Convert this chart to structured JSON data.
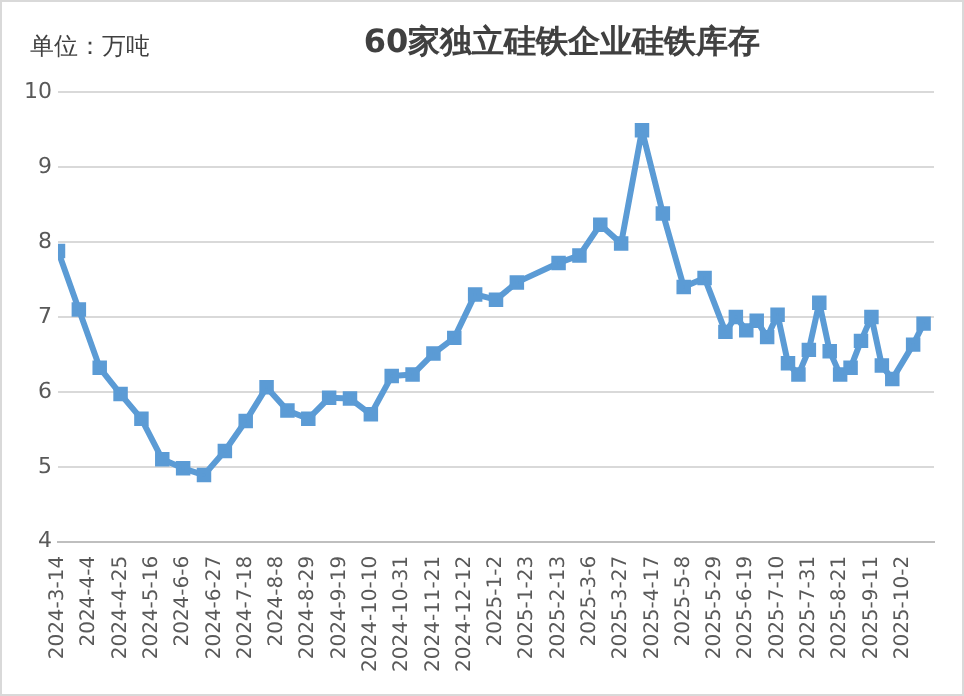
{
  "chart_data": {
    "type": "line",
    "title": "60家独立硅铁企业硅铁库存",
    "annotations": [
      "单位：万吨"
    ],
    "x": [
      "2024-03-14",
      "2024-03-28",
      "2024-04-11",
      "2024-04-25",
      "2024-05-09",
      "2024-05-23",
      "2024-06-06",
      "2024-06-20",
      "2024-07-04",
      "2024-07-18",
      "2024-08-01",
      "2024-08-15",
      "2024-08-29",
      "2024-09-12",
      "2024-09-26",
      "2024-10-10",
      "2024-10-24",
      "2024-11-07",
      "2024-11-21",
      "2024-12-05",
      "2024-12-19",
      "2025-01-02",
      "2025-01-16",
      "2025-02-13",
      "2025-02-27",
      "2025-03-13",
      "2025-03-27",
      "2025-04-10",
      "2025-04-24",
      "2025-05-08",
      "2025-05-22",
      "2025-06-05",
      "2025-06-12",
      "2025-06-19",
      "2025-06-26",
      "2025-07-03",
      "2025-07-10",
      "2025-07-17",
      "2025-07-24",
      "2025-07-31",
      "2025-08-07",
      "2025-08-14",
      "2025-08-21",
      "2025-08-28",
      "2025-09-04",
      "2025-09-11",
      "2025-09-18",
      "2025-09-25",
      "2025-10-09",
      "2025-10-16"
    ],
    "series": [
      {
        "color": "#5b9bd5",
        "values": [
          7.88,
          7.1,
          6.32,
          5.97,
          5.64,
          5.1,
          4.98,
          4.89,
          5.21,
          5.61,
          6.06,
          5.75,
          5.64,
          5.92,
          5.91,
          5.7,
          6.21,
          6.23,
          6.51,
          6.72,
          7.3,
          7.23,
          7.46,
          7.72,
          7.82,
          8.23,
          7.98,
          9.49,
          8.38,
          7.4,
          7.52,
          6.8,
          7.0,
          6.82,
          6.95,
          6.73,
          7.03,
          6.38,
          6.23,
          6.56,
          7.19,
          6.54,
          6.23,
          6.32,
          6.68,
          7.0,
          6.35,
          6.17,
          6.63,
          6.91
        ]
      }
    ],
    "xlim": [
      "2024-03-14",
      "2025-10-23"
    ],
    "xticks": [
      {
        "value": "2024-03-14",
        "label": "2024-3-14"
      },
      {
        "value": "2024-04-04",
        "label": "2024-4-4"
      },
      {
        "value": "2024-04-25",
        "label": "2024-4-25"
      },
      {
        "value": "2024-05-16",
        "label": "2024-5-16"
      },
      {
        "value": "2024-06-06",
        "label": "2024-6-6"
      },
      {
        "value": "2024-06-27",
        "label": "2024-6-27"
      },
      {
        "value": "2024-07-18",
        "label": "2024-7-18"
      },
      {
        "value": "2024-08-08",
        "label": "2024-8-8"
      },
      {
        "value": "2024-08-29",
        "label": "2024-8-29"
      },
      {
        "value": "2024-09-19",
        "label": "2024-9-19"
      },
      {
        "value": "2024-10-10",
        "label": "2024-10-10"
      },
      {
        "value": "2024-10-31",
        "label": "2024-10-31"
      },
      {
        "value": "2024-11-21",
        "label": "2024-11-21"
      },
      {
        "value": "2024-12-12",
        "label": "2024-12-12"
      },
      {
        "value": "2025-01-02",
        "label": "2025-1-2"
      },
      {
        "value": "2025-01-23",
        "label": "2025-1-23"
      },
      {
        "value": "2025-02-13",
        "label": "2025-2-13"
      },
      {
        "value": "2025-03-06",
        "label": "2025-3-6"
      },
      {
        "value": "2025-03-27",
        "label": "2025-3-27"
      },
      {
        "value": "2025-04-17",
        "label": "2025-4-17"
      },
      {
        "value": "2025-05-08",
        "label": "2025-5-8"
      },
      {
        "value": "2025-05-29",
        "label": "2025-5-29"
      },
      {
        "value": "2025-06-19",
        "label": "2025-6-19"
      },
      {
        "value": "2025-07-10",
        "label": "2025-7-10"
      },
      {
        "value": "2025-07-31",
        "label": "2025-7-31"
      },
      {
        "value": "2025-08-21",
        "label": "2025-8-21"
      },
      {
        "value": "2025-09-11",
        "label": "2025-9-11"
      },
      {
        "value": "2025-10-02",
        "label": "2025-10-2"
      }
    ],
    "ylim": [
      4,
      10
    ],
    "yticks": [
      4,
      5,
      6,
      7,
      8,
      9,
      10
    ],
    "grid": "y",
    "marker": "square",
    "line_style": "solid",
    "legend": false
  }
}
